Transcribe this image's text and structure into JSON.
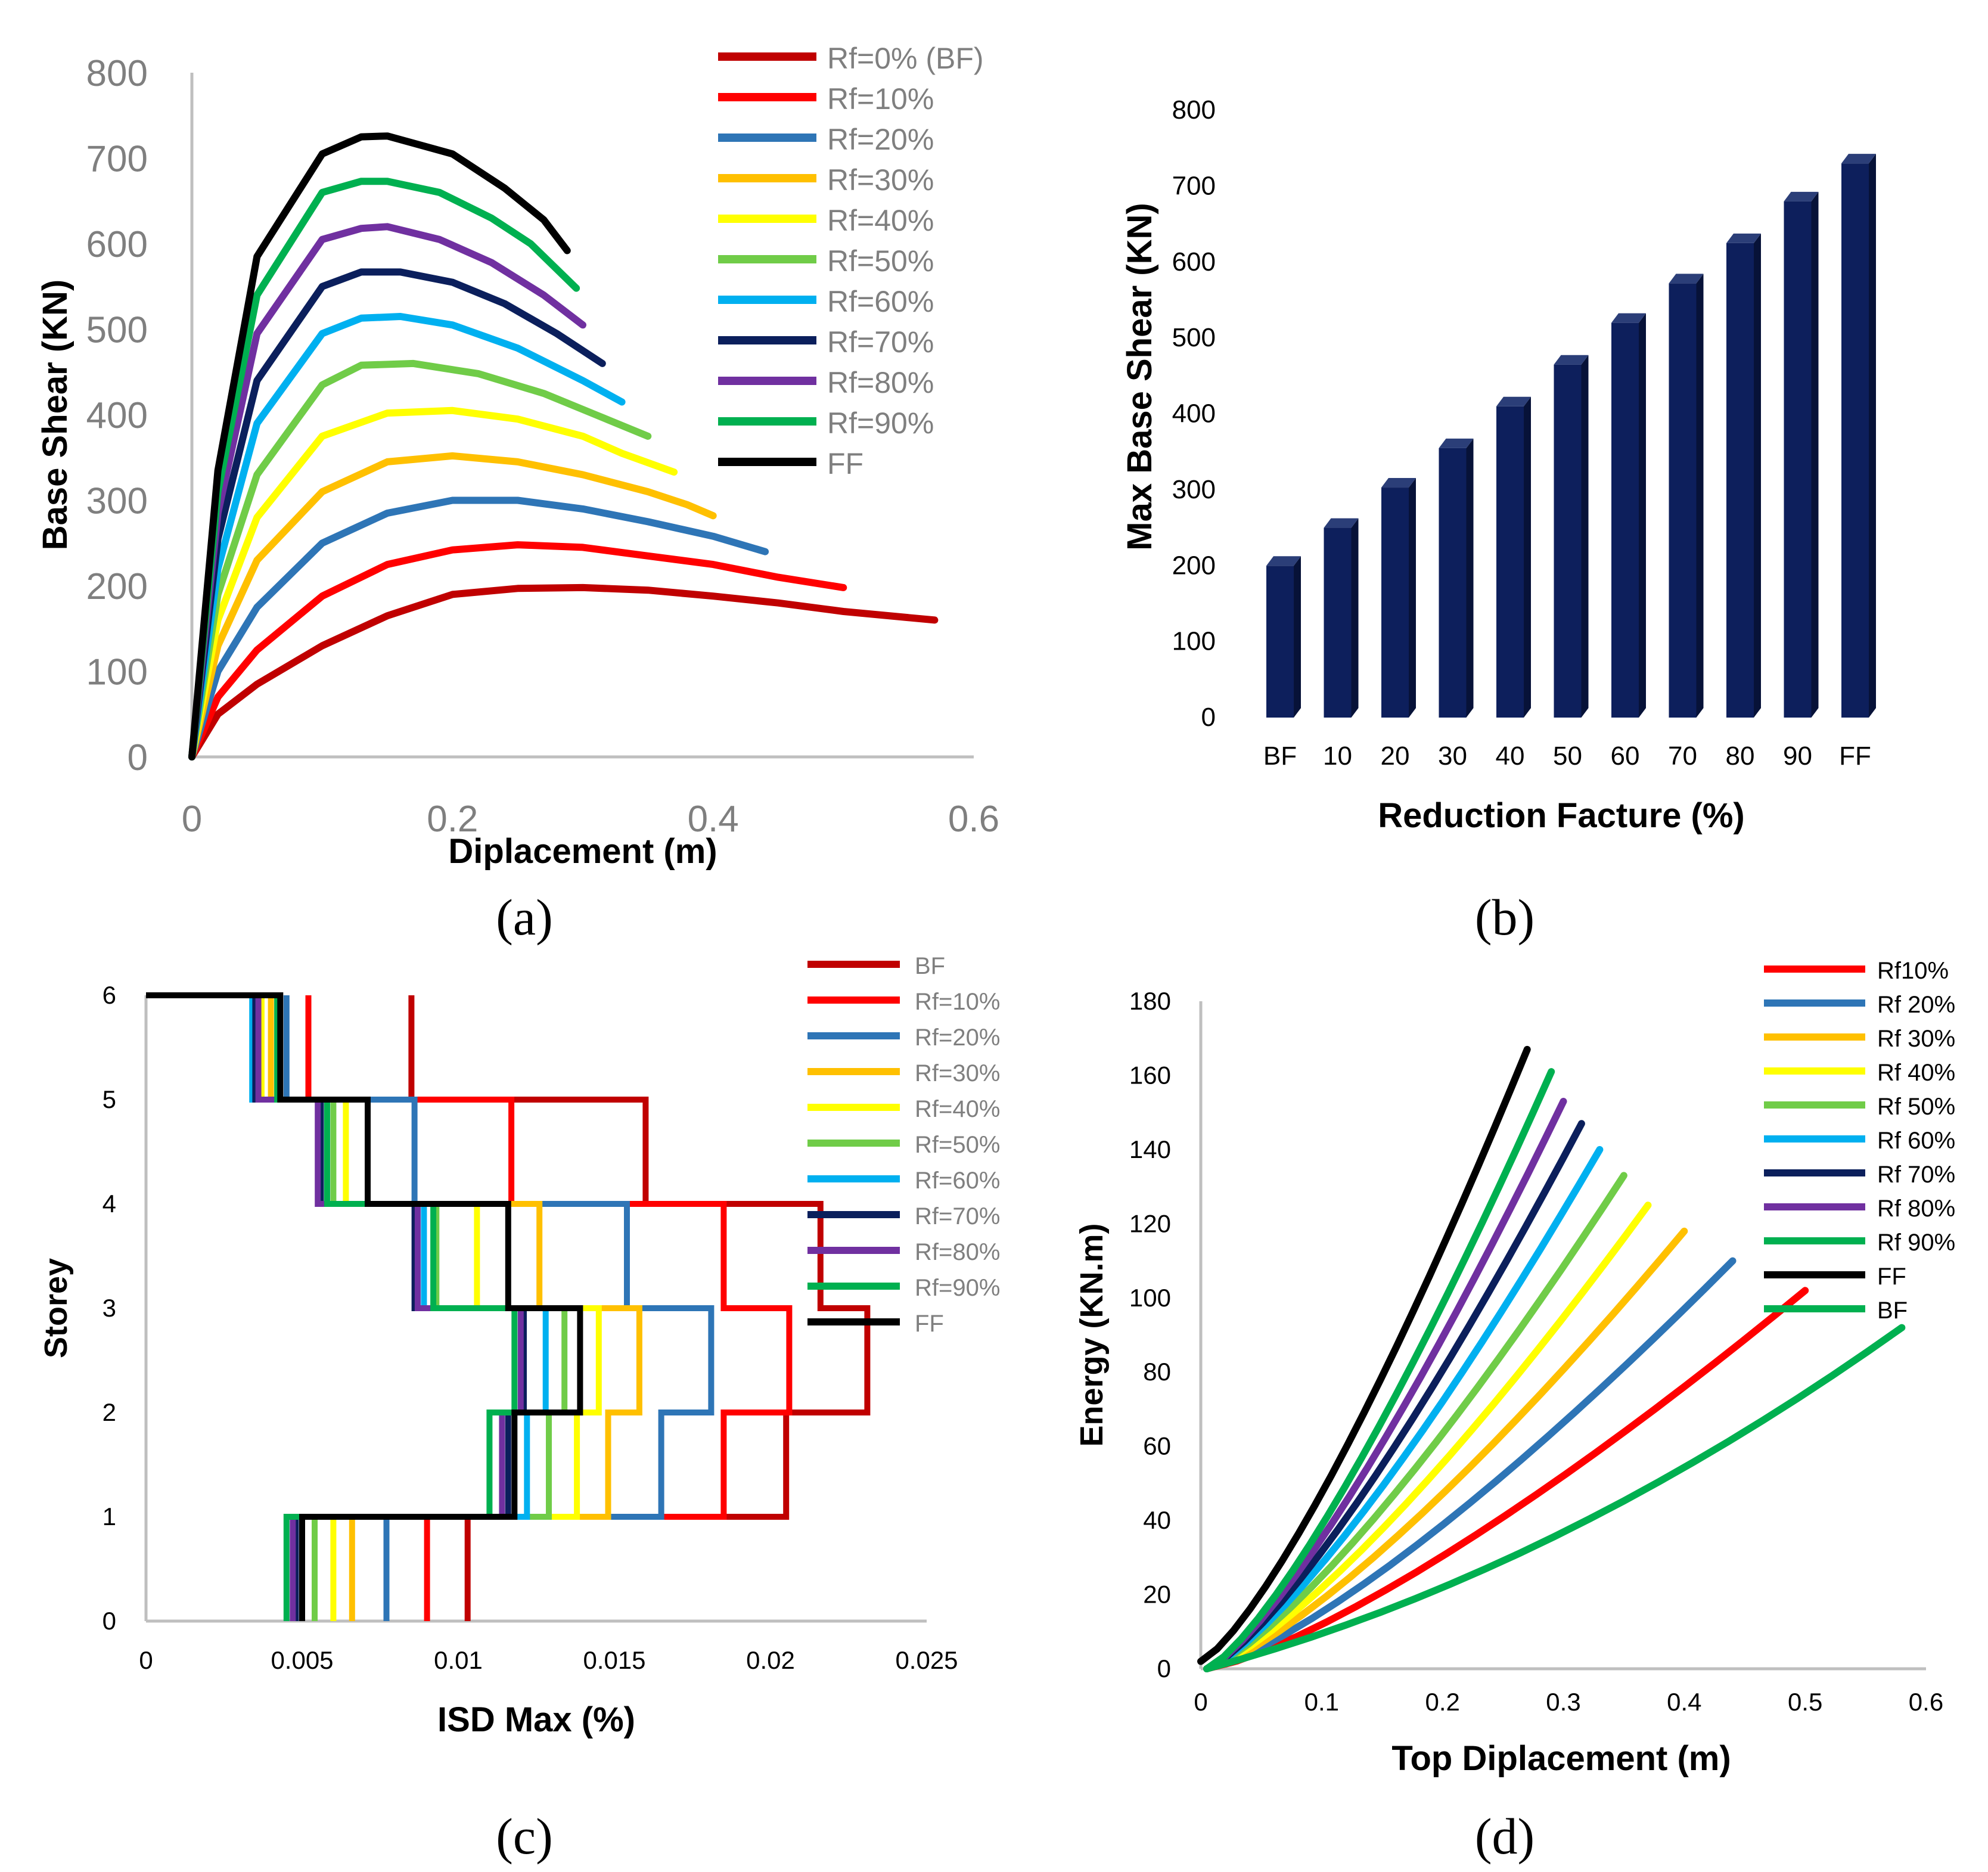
{
  "colors": {
    "bf": "#C00000",
    "rf10": "#FF0000",
    "rf20": "#2E75B6",
    "rf30": "#FFC000",
    "rf40": "#FFFF00",
    "rf50": "#70CC48",
    "rf60": "#00B0F0",
    "rf70": "#0B1F5C",
    "rf80": "#7030A0",
    "rf90": "#00B050",
    "ff": "#000000",
    "bar": "#0D1F5C",
    "bar_top": "#2B3E78",
    "bar_side": "#071238",
    "axis_light": "#BFBFBF",
    "text_gray": "#7F7F7F"
  },
  "chart_data": [
    {
      "id": "a",
      "panel_label": "(a)",
      "type": "line",
      "title": "",
      "xlabel": "Diplacement (m)",
      "ylabel": "Base Shear (KN)",
      "xlim": [
        0,
        0.6
      ],
      "ylim": [
        0,
        800
      ],
      "xticks": [
        0,
        0.2,
        0.4,
        0.6
      ],
      "xtick_labels": [
        "0",
        "0.2",
        "0.4",
        "0.6"
      ],
      "yticks": [
        0,
        100,
        200,
        300,
        400,
        500,
        600,
        700,
        800
      ],
      "ytick_labels": [
        "0",
        "100",
        "200",
        "300",
        "400",
        "500",
        "600",
        "700",
        "800"
      ],
      "grid": false,
      "legend_position": "top-right",
      "series": [
        {
          "name": "Rf=0% (BF)",
          "color_key": "bf",
          "points": [
            [
              0,
              0
            ],
            [
              0.02,
              50
            ],
            [
              0.05,
              85
            ],
            [
              0.1,
              130
            ],
            [
              0.15,
              165
            ],
            [
              0.2,
              190
            ],
            [
              0.25,
              197
            ],
            [
              0.3,
              198
            ],
            [
              0.35,
              195
            ],
            [
              0.4,
              188
            ],
            [
              0.45,
              180
            ],
            [
              0.5,
              170
            ],
            [
              0.57,
              160
            ]
          ]
        },
        {
          "name": "Rf=10%",
          "color_key": "rf10",
          "points": [
            [
              0,
              0
            ],
            [
              0.02,
              70
            ],
            [
              0.05,
              125
            ],
            [
              0.1,
              188
            ],
            [
              0.15,
              225
            ],
            [
              0.2,
              242
            ],
            [
              0.25,
              248
            ],
            [
              0.3,
              245
            ],
            [
              0.35,
              235
            ],
            [
              0.4,
              225
            ],
            [
              0.45,
              210
            ],
            [
              0.5,
              198
            ]
          ]
        },
        {
          "name": "Rf=20%",
          "color_key": "rf20",
          "points": [
            [
              0,
              0
            ],
            [
              0.02,
              100
            ],
            [
              0.05,
              175
            ],
            [
              0.1,
              250
            ],
            [
              0.15,
              285
            ],
            [
              0.2,
              300
            ],
            [
              0.25,
              300
            ],
            [
              0.3,
              290
            ],
            [
              0.35,
              275
            ],
            [
              0.4,
              258
            ],
            [
              0.44,
              240
            ]
          ]
        },
        {
          "name": "Rf=30%",
          "color_key": "rf30",
          "points": [
            [
              0,
              0
            ],
            [
              0.02,
              130
            ],
            [
              0.05,
              230
            ],
            [
              0.1,
              310
            ],
            [
              0.15,
              345
            ],
            [
              0.2,
              352
            ],
            [
              0.25,
              345
            ],
            [
              0.3,
              330
            ],
            [
              0.35,
              310
            ],
            [
              0.38,
              295
            ],
            [
              0.4,
              282
            ]
          ]
        },
        {
          "name": "Rf=40%",
          "color_key": "rf40",
          "points": [
            [
              0,
              0
            ],
            [
              0.02,
              160
            ],
            [
              0.05,
              280
            ],
            [
              0.1,
              375
            ],
            [
              0.15,
              402
            ],
            [
              0.2,
              405
            ],
            [
              0.25,
              395
            ],
            [
              0.3,
              375
            ],
            [
              0.33,
              355
            ],
            [
              0.37,
              333
            ]
          ]
        },
        {
          "name": "Rf=50%",
          "color_key": "rf50",
          "points": [
            [
              0,
              0
            ],
            [
              0.02,
              190
            ],
            [
              0.05,
              330
            ],
            [
              0.1,
              435
            ],
            [
              0.13,
              458
            ],
            [
              0.17,
              460
            ],
            [
              0.22,
              448
            ],
            [
              0.27,
              425
            ],
            [
              0.31,
              400
            ],
            [
              0.35,
              375
            ]
          ]
        },
        {
          "name": "Rf=60%",
          "color_key": "rf60",
          "points": [
            [
              0,
              0
            ],
            [
              0.02,
              220
            ],
            [
              0.05,
              390
            ],
            [
              0.1,
              495
            ],
            [
              0.13,
              513
            ],
            [
              0.16,
              515
            ],
            [
              0.2,
              505
            ],
            [
              0.25,
              478
            ],
            [
              0.3,
              440
            ],
            [
              0.33,
              415
            ]
          ]
        },
        {
          "name": "Rf=70%",
          "color_key": "rf70",
          "points": [
            [
              0,
              0
            ],
            [
              0.02,
              255
            ],
            [
              0.05,
              440
            ],
            [
              0.1,
              550
            ],
            [
              0.13,
              567
            ],
            [
              0.16,
              567
            ],
            [
              0.2,
              555
            ],
            [
              0.24,
              530
            ],
            [
              0.28,
              495
            ],
            [
              0.315,
              460
            ]
          ]
        },
        {
          "name": "Rf=80%",
          "color_key": "rf80",
          "points": [
            [
              0,
              0
            ],
            [
              0.02,
              285
            ],
            [
              0.05,
              495
            ],
            [
              0.1,
              605
            ],
            [
              0.13,
              618
            ],
            [
              0.15,
              620
            ],
            [
              0.19,
              605
            ],
            [
              0.23,
              578
            ],
            [
              0.27,
              540
            ],
            [
              0.3,
              505
            ]
          ]
        },
        {
          "name": "Rf=90%",
          "color_key": "rf90",
          "points": [
            [
              0,
              0
            ],
            [
              0.02,
              310
            ],
            [
              0.05,
              540
            ],
            [
              0.1,
              660
            ],
            [
              0.13,
              673
            ],
            [
              0.15,
              673
            ],
            [
              0.19,
              660
            ],
            [
              0.23,
              630
            ],
            [
              0.26,
              600
            ],
            [
              0.295,
              548
            ]
          ]
        },
        {
          "name": "FF",
          "color_key": "ff",
          "points": [
            [
              0,
              0
            ],
            [
              0.02,
              335
            ],
            [
              0.05,
              585
            ],
            [
              0.1,
              705
            ],
            [
              0.13,
              725
            ],
            [
              0.15,
              726
            ],
            [
              0.2,
              705
            ],
            [
              0.24,
              665
            ],
            [
              0.27,
              628
            ],
            [
              0.288,
              592
            ]
          ]
        }
      ]
    },
    {
      "id": "b",
      "panel_label": "(b)",
      "type": "bar",
      "title": "",
      "xlabel": "Reduction Facture (%)",
      "ylabel": "Max Base Shear (KN)",
      "ylim": [
        0,
        800
      ],
      "yticks": [
        0,
        100,
        200,
        300,
        400,
        500,
        600,
        700,
        800
      ],
      "ytick_labels": [
        "0",
        "100",
        "200",
        "300",
        "400",
        "500",
        "600",
        "700",
        "800"
      ],
      "grid": false,
      "categories": [
        "BF",
        "10",
        "20",
        "30",
        "40",
        "50",
        "60",
        "70",
        "80",
        "90",
        "FF"
      ],
      "values": [
        200,
        250,
        303,
        355,
        410,
        465,
        520,
        572,
        625,
        680,
        730
      ]
    },
    {
      "id": "c",
      "panel_label": "(c)",
      "type": "line",
      "title": "",
      "xlabel": "ISD Max (%)",
      "ylabel": "Storey",
      "xlim": [
        0,
        0.025
      ],
      "ylim": [
        0,
        6
      ],
      "xticks": [
        0,
        0.005,
        0.01,
        0.015,
        0.02,
        0.025
      ],
      "xtick_labels": [
        "0",
        "0.005",
        "0.01",
        "0.015",
        "0.02",
        "0.025"
      ],
      "yticks": [
        0,
        1,
        2,
        3,
        4,
        5,
        6
      ],
      "ytick_labels": [
        "0",
        "1",
        "2",
        "3",
        "4",
        "5",
        "6"
      ],
      "grid": false,
      "legend_position": "top-right",
      "series": [
        {
          "name": "BF",
          "color_key": "bf",
          "drifts": [
            0.0103,
            0.0205,
            0.0231,
            0.0216,
            0.016,
            0.0085
          ]
        },
        {
          "name": "Rf=10%",
          "color_key": "rf10",
          "drifts": [
            0.009,
            0.0185,
            0.0206,
            0.0185,
            0.0117,
            0.0052
          ]
        },
        {
          "name": "Rf=20%",
          "color_key": "rf20",
          "drifts": [
            0.0077,
            0.0165,
            0.0181,
            0.0154,
            0.0086,
            0.0045
          ]
        },
        {
          "name": "Rf=30%",
          "color_key": "rf30",
          "drifts": [
            0.0066,
            0.0148,
            0.0158,
            0.0126,
            0.0071,
            0.004
          ]
        },
        {
          "name": "Rf=40%",
          "color_key": "rf40",
          "drifts": [
            0.006,
            0.0138,
            0.0145,
            0.0106,
            0.0064,
            0.0037
          ]
        },
        {
          "name": "Rf=50%",
          "color_key": "rf50",
          "drifts": [
            0.0054,
            0.0129,
            0.0134,
            0.0093,
            0.006,
            0.0035
          ]
        },
        {
          "name": "Rf=60%",
          "color_key": "rf60",
          "drifts": [
            0.005,
            0.0122,
            0.0128,
            0.0089,
            0.0058,
            0.0034
          ]
        },
        {
          "name": "Rf=70%",
          "color_key": "rf70",
          "drifts": [
            0.0048,
            0.0116,
            0.0121,
            0.0086,
            0.0056,
            0.0035
          ]
        },
        {
          "name": "Rf=80%",
          "color_key": "rf80",
          "drifts": [
            0.0047,
            0.0114,
            0.012,
            0.0087,
            0.0055,
            0.0036
          ]
        },
        {
          "name": "Rf=90%",
          "color_key": "rf90",
          "drifts": [
            0.0045,
            0.011,
            0.0118,
            0.0092,
            0.0058,
            0.0042
          ]
        },
        {
          "name": "FF",
          "color_key": "ff",
          "drifts": [
            0.005,
            0.0118,
            0.0139,
            0.0116,
            0.0071,
            0.0043
          ]
        }
      ]
    },
    {
      "id": "d",
      "panel_label": "(d)",
      "type": "line",
      "title": "",
      "xlabel": "Top Diplacement (m)",
      "ylabel": "Energy (KN.m)",
      "xlim": [
        0,
        0.6
      ],
      "ylim": [
        0,
        180
      ],
      "xticks": [
        0,
        0.1,
        0.2,
        0.3,
        0.4,
        0.5,
        0.6
      ],
      "xtick_labels": [
        "0",
        "0.1",
        "0.2",
        "0.3",
        "0.4",
        "0.5",
        "0.6"
      ],
      "yticks": [
        0,
        20,
        40,
        60,
        80,
        100,
        120,
        140,
        160,
        180
      ],
      "ytick_labels": [
        "0",
        "20",
        "40",
        "60",
        "80",
        "100",
        "120",
        "140",
        "160",
        "180"
      ],
      "grid": false,
      "legend_position": "top-right",
      "series": [
        {
          "name": "Rf10%",
          "color_key": "rf10",
          "x_end": 0.5,
          "y_end": 102
        },
        {
          "name": "Rf 20%",
          "color_key": "rf20",
          "x_end": 0.44,
          "y_end": 110
        },
        {
          "name": "Rf 30%",
          "color_key": "rf30",
          "x_end": 0.4,
          "y_end": 118
        },
        {
          "name": "Rf 40%",
          "color_key": "rf40",
          "x_end": 0.37,
          "y_end": 125
        },
        {
          "name": "Rf 50%",
          "color_key": "rf50",
          "x_end": 0.35,
          "y_end": 133
        },
        {
          "name": "Rf 60%",
          "color_key": "rf60",
          "x_end": 0.33,
          "y_end": 140
        },
        {
          "name": "Rf 70%",
          "color_key": "rf70",
          "x_end": 0.315,
          "y_end": 147
        },
        {
          "name": "Rf 80%",
          "color_key": "rf80",
          "x_end": 0.3,
          "y_end": 153
        },
        {
          "name": "Rf 90%",
          "color_key": "rf90",
          "x_end": 0.29,
          "y_end": 161
        },
        {
          "name": "FF",
          "color_key": "ff",
          "x_end": 0.27,
          "y_end": 167
        },
        {
          "name": "BF",
          "color_key": "rf90",
          "x_end": 0.58,
          "y_end": 92
        }
      ]
    }
  ]
}
